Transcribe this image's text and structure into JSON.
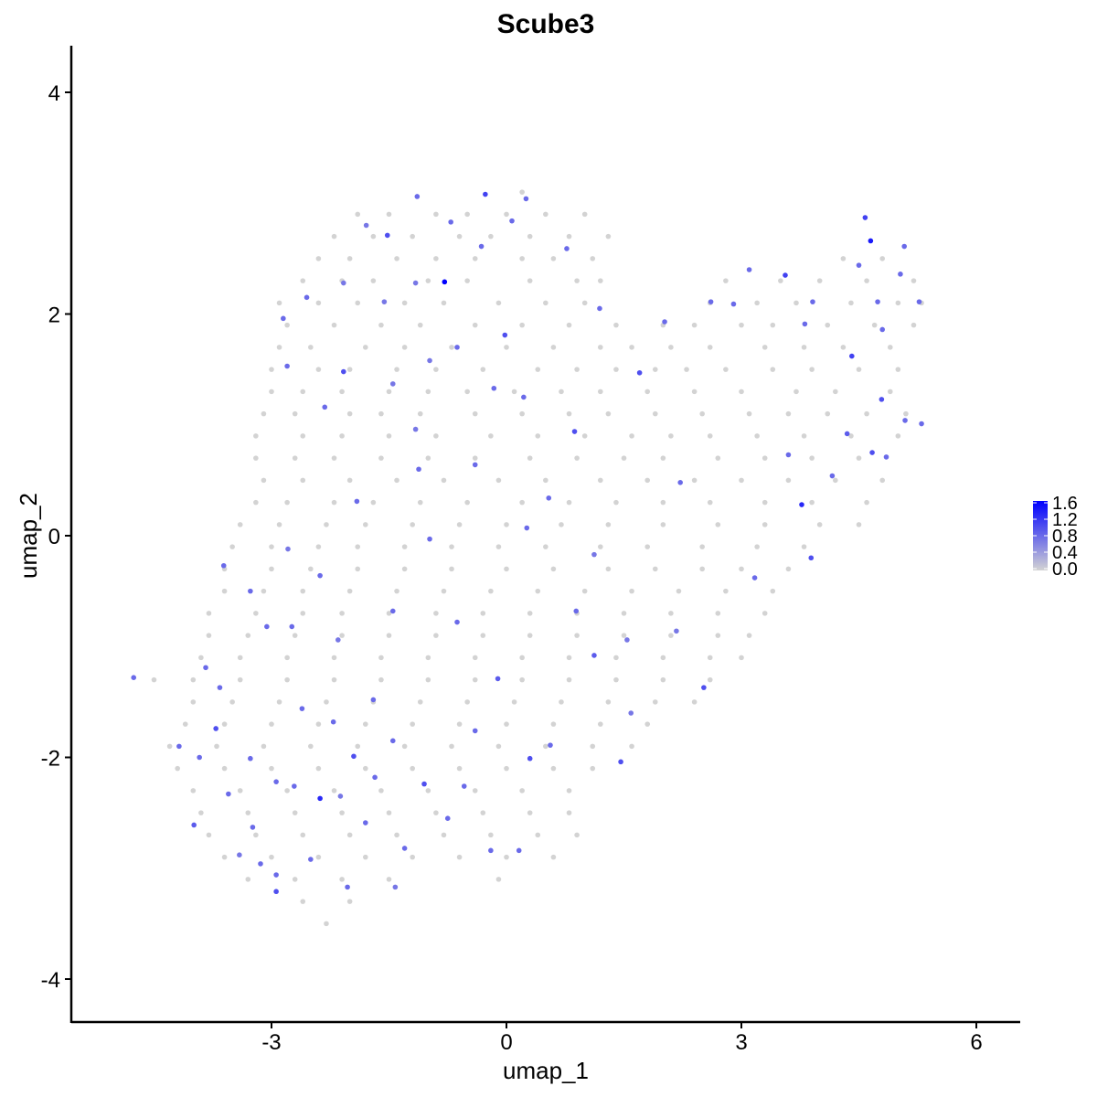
{
  "chart_data": {
    "type": "scatter",
    "title": "Scube3",
    "xlabel": "umap_1",
    "ylabel": "umap_2",
    "xlim": [
      -5.56,
      6.55
    ],
    "ylim": [
      -4.39,
      4.42
    ],
    "xticks": [
      -3,
      0,
      3,
      6
    ],
    "yticks": [
      -4,
      -2,
      0,
      2,
      4
    ],
    "xtick_labels": [
      "-3",
      "0",
      "3",
      "6"
    ],
    "ytick_labels": [
      "-4",
      "-2",
      "0",
      "2",
      "4"
    ],
    "grid": false,
    "legend": {
      "placement": "right",
      "type": "colorbar",
      "min": 0.0,
      "max": 1.6,
      "ticks": [
        0.0,
        0.4,
        0.8,
        1.2,
        1.6
      ],
      "tick_labels": [
        "0.0",
        "0.4",
        "0.8",
        "1.2",
        "1.6"
      ],
      "low_color": "#D3D3D3",
      "high_color": "#0000FF"
    },
    "zero_expression_rows": [
      {
        "y": 3.1,
        "x": [
          0.2
        ]
      },
      {
        "y": 2.9,
        "x": [
          -1.9,
          -1.5,
          -0.9,
          -0.5,
          0.0,
          0.5,
          1.0
        ]
      },
      {
        "y": 2.7,
        "x": [
          -2.2,
          -1.7,
          -1.2,
          -0.6,
          -0.2,
          0.3,
          0.8,
          1.3
        ]
      },
      {
        "y": 2.5,
        "x": [
          -2.4,
          -2.0,
          -1.4,
          -0.9,
          -0.4,
          0.2,
          0.6,
          1.1,
          4.3,
          4.8
        ]
      },
      {
        "y": 2.3,
        "x": [
          -2.6,
          -2.1,
          -1.7,
          -1.0,
          -0.5,
          0.3,
          0.9,
          1.2,
          2.8,
          3.5,
          4.0,
          4.6,
          5.2
        ]
      },
      {
        "y": 2.1,
        "x": [
          -2.9,
          -2.4,
          -1.9,
          -1.3,
          -0.8,
          -0.1,
          0.5,
          1.0,
          2.6,
          3.2,
          3.7,
          4.4,
          5.0,
          5.3
        ]
      },
      {
        "y": 1.9,
        "x": [
          -2.8,
          -2.2,
          -1.6,
          -1.1,
          -0.4,
          0.2,
          0.8,
          1.4,
          2.0,
          2.4,
          3.0,
          3.4,
          4.1,
          4.7,
          5.2
        ]
      },
      {
        "y": 1.7,
        "x": [
          -2.9,
          -2.5,
          -1.8,
          -1.3,
          -0.7,
          0.0,
          0.6,
          1.2,
          1.6,
          2.1,
          2.6,
          3.3,
          3.8,
          4.3,
          4.9
        ]
      },
      {
        "y": 1.5,
        "x": [
          -3.0,
          -2.4,
          -2.0,
          -1.4,
          -0.9,
          -0.3,
          0.4,
          0.9,
          1.4,
          1.9,
          2.3,
          2.8,
          3.4,
          3.9,
          4.5,
          5.0
        ]
      },
      {
        "y": 1.3,
        "x": [
          -3.0,
          -2.6,
          -2.1,
          -1.5,
          -1.0,
          -0.5,
          0.1,
          0.7,
          1.2,
          1.8,
          2.4,
          3.0,
          3.7,
          4.2,
          4.9
        ]
      },
      {
        "y": 1.1,
        "x": [
          -3.1,
          -2.7,
          -2.0,
          -1.6,
          -1.1,
          -0.4,
          0.2,
          0.8,
          1.3,
          1.9,
          2.5,
          3.1,
          3.6,
          4.1,
          4.6,
          5.1
        ]
      },
      {
        "y": 0.9,
        "x": [
          -3.2,
          -2.6,
          -2.1,
          -1.5,
          -0.9,
          -0.2,
          0.4,
          1.0,
          1.6,
          2.1,
          2.6,
          3.2,
          3.8,
          4.4,
          5.0
        ]
      },
      {
        "y": 0.7,
        "x": [
          -3.2,
          -2.7,
          -2.2,
          -1.6,
          -1.0,
          -0.4,
          0.3,
          0.9,
          1.5,
          2.0,
          2.7,
          3.3,
          3.9,
          4.5
        ]
      },
      {
        "y": 0.5,
        "x": [
          -3.1,
          -2.6,
          -2.0,
          -1.4,
          -0.8,
          -0.1,
          0.5,
          1.2,
          1.8,
          2.4,
          3.0,
          3.6,
          4.2,
          4.8
        ]
      },
      {
        "y": 0.3,
        "x": [
          -3.2,
          -2.8,
          -2.2,
          -1.7,
          -1.1,
          -0.5,
          0.2,
          0.8,
          1.4,
          2.0,
          2.6,
          3.3,
          3.9,
          4.6
        ]
      },
      {
        "y": 0.1,
        "x": [
          -3.4,
          -2.9,
          -2.3,
          -1.8,
          -1.2,
          -0.6,
          0.0,
          0.7,
          1.3,
          2.0,
          2.7,
          3.3,
          4.0,
          4.5
        ]
      },
      {
        "y": -0.1,
        "x": [
          -3.5,
          -3.0,
          -2.4,
          -1.9,
          -1.3,
          -0.7,
          -0.1,
          0.5,
          1.2,
          1.8,
          2.5,
          3.2,
          3.8
        ]
      },
      {
        "y": -0.3,
        "x": [
          -3.6,
          -3.0,
          -2.5,
          -1.9,
          -1.3,
          -0.7,
          0.0,
          0.6,
          1.3,
          1.9,
          2.5,
          3.0,
          3.6
        ]
      },
      {
        "y": -0.5,
        "x": [
          -3.6,
          -3.1,
          -2.6,
          -2.0,
          -1.4,
          -0.8,
          -0.2,
          0.4,
          1.0,
          1.6,
          2.2,
          2.8,
          3.4
        ]
      },
      {
        "y": -0.7,
        "x": [
          -3.8,
          -3.2,
          -2.6,
          -2.1,
          -1.5,
          -0.9,
          -0.3,
          0.3,
          0.9,
          1.5,
          2.1,
          2.7,
          3.3
        ]
      },
      {
        "y": -0.9,
        "x": [
          -3.8,
          -3.3,
          -2.7,
          -2.1,
          -1.5,
          -0.9,
          -0.3,
          0.3,
          0.9,
          1.5,
          2.1,
          2.7,
          3.1
        ]
      },
      {
        "y": -1.1,
        "x": [
          -3.9,
          -3.4,
          -2.8,
          -2.2,
          -1.6,
          -1.0,
          -0.4,
          0.2,
          0.8,
          1.4,
          2.0,
          2.6,
          3.0
        ]
      },
      {
        "y": -1.3,
        "x": [
          -4.5,
          -4.0,
          -3.4,
          -2.8,
          -2.2,
          -1.6,
          -1.0,
          -0.4,
          0.2,
          0.8,
          1.4,
          2.0,
          2.6
        ]
      },
      {
        "y": -1.5,
        "x": [
          -4.0,
          -3.5,
          -2.9,
          -2.3,
          -1.7,
          -1.1,
          -0.5,
          0.1,
          0.7,
          1.3,
          1.9,
          2.4
        ]
      },
      {
        "y": -1.7,
        "x": [
          -4.1,
          -3.6,
          -3.0,
          -2.4,
          -1.8,
          -1.2,
          -0.6,
          0.0,
          0.6,
          1.2,
          1.8
        ]
      },
      {
        "y": -1.9,
        "x": [
          -4.3,
          -3.7,
          -3.1,
          -2.5,
          -1.9,
          -1.3,
          -0.7,
          -0.1,
          0.5,
          1.1,
          1.6
        ]
      },
      {
        "y": -2.1,
        "x": [
          -4.2,
          -3.6,
          -3.0,
          -2.4,
          -1.8,
          -1.2,
          -0.6,
          0.0,
          0.6,
          1.1
        ]
      },
      {
        "y": -2.3,
        "x": [
          -4.0,
          -3.4,
          -2.8,
          -2.2,
          -1.6,
          -1.0,
          -0.4,
          0.2,
          0.8
        ]
      },
      {
        "y": -2.5,
        "x": [
          -3.9,
          -3.3,
          -2.7,
          -2.1,
          -1.5,
          -0.9,
          -0.3,
          0.3,
          0.8
        ]
      },
      {
        "y": -2.7,
        "x": [
          -3.8,
          -3.2,
          -2.6,
          -2.0,
          -1.4,
          -0.8,
          -0.2,
          0.4,
          0.9
        ]
      },
      {
        "y": -2.9,
        "x": [
          -3.6,
          -3.0,
          -2.4,
          -1.8,
          -1.2,
          -0.6,
          0.0,
          0.6
        ]
      },
      {
        "y": -3.1,
        "x": [
          -3.3,
          -2.7,
          -2.1,
          -1.5,
          -0.1
        ]
      },
      {
        "y": -3.3,
        "x": [
          -2.6,
          -2.0
        ]
      },
      {
        "y": -3.5,
        "x": [
          -2.3
        ]
      }
    ],
    "expressed_points": [
      [
        -0.79,
        2.29,
        1.6
      ],
      [
        4.65,
        2.66,
        1.4
      ],
      [
        -2.38,
        -2.37,
        1.3
      ],
      [
        3.77,
        0.28,
        1.3
      ],
      [
        -0.27,
        3.08,
        1.1
      ],
      [
        4.58,
        2.87,
        1.1
      ],
      [
        3.56,
        2.35,
        1.1
      ],
      [
        4.41,
        1.62,
        1.1
      ],
      [
        4.79,
        1.23,
        1.0
      ],
      [
        4.67,
        0.75,
        1.0
      ],
      [
        1.7,
        1.47,
        1.0
      ],
      [
        0.87,
        0.94,
        1.0
      ],
      [
        -1.52,
        2.71,
        1.0
      ],
      [
        -2.08,
        1.48,
        1.0
      ],
      [
        -0.02,
        1.81,
        1.0
      ],
      [
        -1.95,
        -1.99,
        1.0
      ],
      [
        -3.71,
        -1.74,
        1.0
      ],
      [
        -2.94,
        -3.21,
        1.0
      ],
      [
        -1.05,
        -2.24,
        1.0
      ],
      [
        0.3,
        -2.01,
        1.0
      ],
      [
        1.46,
        -2.04,
        1.0
      ],
      [
        3.89,
        -0.2,
        1.0
      ],
      [
        4.35,
        0.92,
        0.9
      ],
      [
        2.52,
        -1.37,
        1.0
      ],
      [
        -4.18,
        -1.9,
        0.8
      ],
      [
        -4.76,
        -1.28,
        0.8
      ],
      [
        -3.61,
        -0.27,
        0.8
      ],
      [
        -3.99,
        -2.61,
        0.9
      ],
      [
        -2.74,
        -0.82,
        0.8
      ],
      [
        -0.63,
        -0.78,
        0.8
      ],
      [
        -0.11,
        -1.29,
        0.9
      ],
      [
        -0.4,
        -1.76,
        0.8
      ],
      [
        0.89,
        -0.68,
        0.8
      ],
      [
        1.12,
        -1.08,
        0.9
      ],
      [
        3.17,
        -0.38,
        0.8
      ],
      [
        2.22,
        0.48,
        0.8
      ],
      [
        3.6,
        0.73,
        0.8
      ],
      [
        4.16,
        0.54,
        0.8
      ],
      [
        5.3,
        1.01,
        0.8
      ],
      [
        5.27,
        2.11,
        0.8
      ],
      [
        5.03,
        2.36,
        0.8
      ],
      [
        2.02,
        1.93,
        0.8
      ],
      [
        2.61,
        2.11,
        0.8
      ],
      [
        2.9,
        2.09,
        0.8
      ],
      [
        1.19,
        2.05,
        0.8
      ],
      [
        0.77,
        2.59,
        0.8
      ],
      [
        0.25,
        3.04,
        0.8
      ],
      [
        -1.14,
        3.06,
        0.8
      ],
      [
        -0.71,
        2.83,
        0.8
      ],
      [
        -1.79,
        2.8,
        0.7
      ],
      [
        -2.55,
        2.15,
        0.8
      ],
      [
        -2.85,
        1.96,
        0.8
      ],
      [
        -2.8,
        1.53,
        0.8
      ],
      [
        -2.32,
        1.16,
        0.8
      ],
      [
        -1.45,
        1.37,
        0.7
      ],
      [
        -0.98,
        1.58,
        0.7
      ],
      [
        -0.63,
        1.7,
        0.8
      ],
      [
        0.22,
        1.25,
        0.8
      ],
      [
        -0.16,
        1.33,
        0.8
      ],
      [
        -1.16,
        0.96,
        0.7
      ],
      [
        -1.12,
        0.6,
        0.8
      ],
      [
        -0.4,
        0.64,
        0.8
      ],
      [
        -1.91,
        0.31,
        0.8
      ],
      [
        -2.79,
        -0.12,
        0.7
      ],
      [
        -2.38,
        -0.36,
        0.8
      ],
      [
        -3.27,
        -0.5,
        0.8
      ],
      [
        -3.06,
        -0.82,
        0.8
      ],
      [
        -2.15,
        -0.94,
        0.7
      ],
      [
        -1.45,
        -0.68,
        0.8
      ],
      [
        -0.98,
        -0.03,
        0.8
      ],
      [
        0.26,
        0.07,
        0.8
      ],
      [
        0.54,
        0.34,
        0.8
      ],
      [
        1.12,
        -0.17,
        0.7
      ],
      [
        2.17,
        -0.86,
        0.7
      ],
      [
        1.54,
        -0.94,
        0.7
      ],
      [
        1.59,
        -1.6,
        0.7
      ],
      [
        0.56,
        -1.89,
        0.8
      ],
      [
        -0.54,
        -2.26,
        0.8
      ],
      [
        -0.75,
        -2.55,
        0.8
      ],
      [
        -0.2,
        -2.84,
        0.8
      ],
      [
        0.16,
        -2.84,
        0.8
      ],
      [
        -1.3,
        -2.82,
        0.8
      ],
      [
        -1.42,
        -3.17,
        0.7
      ],
      [
        -1.8,
        -2.59,
        0.8
      ],
      [
        -2.12,
        -2.35,
        0.7
      ],
      [
        -2.5,
        -2.92,
        0.8
      ],
      [
        -3.14,
        -2.96,
        0.8
      ],
      [
        -3.41,
        -2.88,
        0.7
      ],
      [
        -3.24,
        -2.63,
        0.8
      ],
      [
        -3.55,
        -2.33,
        0.8
      ],
      [
        -3.27,
        -2.01,
        0.8
      ],
      [
        -2.94,
        -2.22,
        0.8
      ],
      [
        -2.71,
        -2.26,
        0.8
      ],
      [
        -3.84,
        -1.19,
        0.8
      ],
      [
        -3.66,
        -1.37,
        0.8
      ],
      [
        -3.92,
        -2.0,
        0.8
      ],
      [
        -2.61,
        -1.56,
        0.8
      ],
      [
        -2.21,
        -1.68,
        0.8
      ],
      [
        -1.7,
        -1.48,
        0.8
      ],
      [
        -1.45,
        -1.85,
        0.8
      ],
      [
        -1.68,
        -2.18,
        0.8
      ],
      [
        -2.03,
        -3.17,
        0.8
      ],
      [
        -2.94,
        -3.06,
        0.8
      ],
      [
        3.1,
        2.4,
        0.8
      ],
      [
        3.81,
        1.91,
        0.8
      ],
      [
        3.91,
        2.11,
        0.8
      ],
      [
        4.8,
        1.86,
        0.8
      ],
      [
        4.74,
        2.11,
        0.8
      ],
      [
        4.5,
        2.44,
        0.8
      ],
      [
        5.08,
        2.61,
        0.8
      ],
      [
        4.85,
        0.71,
        0.8
      ],
      [
        5.09,
        1.04,
        0.8
      ],
      [
        0.07,
        2.84,
        0.8
      ],
      [
        -0.32,
        2.61,
        0.8
      ],
      [
        -1.16,
        2.28,
        0.7
      ],
      [
        -1.56,
        2.11,
        0.7
      ],
      [
        -2.08,
        2.28,
        0.7
      ]
    ]
  }
}
